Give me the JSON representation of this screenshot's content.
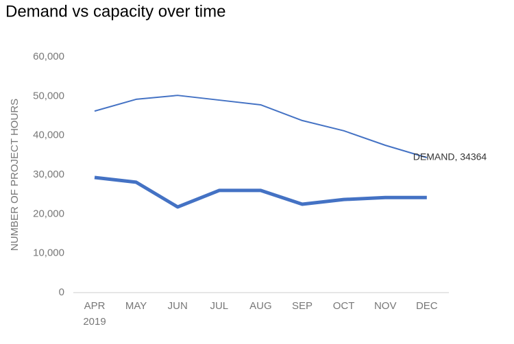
{
  "chart_data": {
    "type": "line",
    "title": "Demand vs capacity over time",
    "y_label": "NUMBER OF PROJECT HOURS",
    "categories": [
      "APR",
      "MAY",
      "JUN",
      "JUL",
      "AUG",
      "SEP",
      "OCT",
      "NOV",
      "DEC"
    ],
    "x_group_label": "2019",
    "series": [
      {
        "name": "DEMAND",
        "color": "#4472c4",
        "width": 2,
        "values": [
          46200,
          49200,
          50200,
          49000,
          47800,
          43800,
          41200,
          37500,
          34364
        ],
        "value_labels": [
          null,
          null,
          null,
          null,
          null,
          null,
          null,
          null,
          "DEMAND, 34364"
        ]
      },
      {
        "color": "#4472c4",
        "width": 5,
        "values": [
          29300,
          28100,
          21800,
          26000,
          26000,
          22500,
          23700,
          24200,
          24200
        ]
      }
    ],
    "ylim": [
      0,
      60000
    ],
    "yticks": [
      0,
      {
        "value": 10000,
        "label": "10,000"
      },
      {
        "value": 20000,
        "label": "20,000"
      },
      {
        "value": 30000,
        "label": "30,000"
      },
      {
        "value": 40000,
        "label": "40,000"
      },
      {
        "value": 50000,
        "label": "50,000"
      },
      {
        "value": 60000,
        "label": "60,000"
      }
    ],
    "grid": false
  }
}
